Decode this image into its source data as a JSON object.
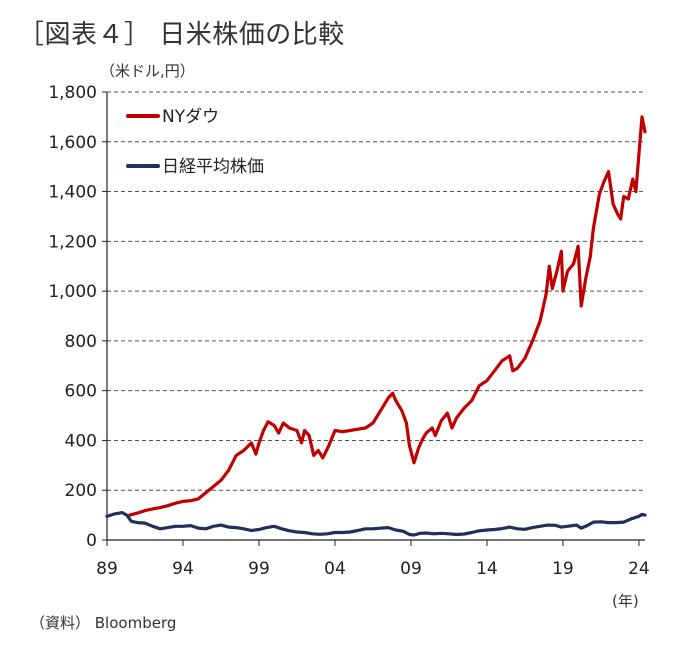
{
  "title": "［図表４］ 日米株価の比較",
  "y_unit": "（米ドル,円）",
  "x_unit": "(年)",
  "source": "（資料） Bloomberg",
  "chart_data": {
    "type": "line",
    "ylim": [
      0,
      1800
    ],
    "yticks": [
      0,
      200,
      400,
      600,
      800,
      1000,
      1200,
      1400,
      1600,
      1800
    ],
    "ytick_labels": [
      "0",
      "200",
      "400",
      "600",
      "800",
      "1,000",
      "1,200",
      "1,400",
      "1,600",
      "1,800"
    ],
    "xlim": [
      1989,
      2024.4
    ],
    "xticks": [
      1989,
      1994,
      1999,
      2004,
      2009,
      2014,
      2019,
      2024
    ],
    "xtick_labels": [
      "89",
      "94",
      "99",
      "04",
      "09",
      "14",
      "19",
      "24"
    ],
    "grid": "horizontal dashed",
    "legend_position": "top-left",
    "series": [
      {
        "name": "NYダウ",
        "color": "#c00000",
        "points": [
          [
            1990.5,
            100
          ],
          [
            1991.0,
            108
          ],
          [
            1991.5,
            118
          ],
          [
            1992.0,
            125
          ],
          [
            1992.5,
            130
          ],
          [
            1993.0,
            138
          ],
          [
            1993.5,
            148
          ],
          [
            1994.0,
            155
          ],
          [
            1994.5,
            158
          ],
          [
            1995.0,
            165
          ],
          [
            1995.5,
            190
          ],
          [
            1996.0,
            215
          ],
          [
            1996.5,
            240
          ],
          [
            1997.0,
            280
          ],
          [
            1997.5,
            340
          ],
          [
            1998.0,
            360
          ],
          [
            1998.5,
            390
          ],
          [
            1998.8,
            345
          ],
          [
            1999.0,
            390
          ],
          [
            1999.3,
            440
          ],
          [
            1999.6,
            475
          ],
          [
            2000.0,
            460
          ],
          [
            2000.3,
            430
          ],
          [
            2000.6,
            470
          ],
          [
            2001.0,
            450
          ],
          [
            2001.5,
            440
          ],
          [
            2001.8,
            390
          ],
          [
            2002.0,
            440
          ],
          [
            2002.3,
            420
          ],
          [
            2002.6,
            340
          ],
          [
            2002.9,
            360
          ],
          [
            2003.2,
            330
          ],
          [
            2003.6,
            380
          ],
          [
            2004.0,
            440
          ],
          [
            2004.5,
            435
          ],
          [
            2005.0,
            440
          ],
          [
            2005.5,
            445
          ],
          [
            2006.0,
            450
          ],
          [
            2006.5,
            470
          ],
          [
            2007.0,
            520
          ],
          [
            2007.5,
            570
          ],
          [
            2007.8,
            590
          ],
          [
            2008.0,
            560
          ],
          [
            2008.4,
            520
          ],
          [
            2008.7,
            470
          ],
          [
            2008.9,
            380
          ],
          [
            2009.2,
            310
          ],
          [
            2009.5,
            370
          ],
          [
            2009.8,
            410
          ],
          [
            2010.0,
            430
          ],
          [
            2010.4,
            450
          ],
          [
            2010.6,
            420
          ],
          [
            2011.0,
            480
          ],
          [
            2011.4,
            510
          ],
          [
            2011.7,
            450
          ],
          [
            2012.0,
            490
          ],
          [
            2012.5,
            530
          ],
          [
            2013.0,
            560
          ],
          [
            2013.5,
            620
          ],
          [
            2014.0,
            640
          ],
          [
            2014.5,
            680
          ],
          [
            2015.0,
            720
          ],
          [
            2015.5,
            740
          ],
          [
            2015.7,
            680
          ],
          [
            2016.0,
            690
          ],
          [
            2016.5,
            730
          ],
          [
            2017.0,
            800
          ],
          [
            2017.5,
            880
          ],
          [
            2017.9,
            990
          ],
          [
            2018.1,
            1100
          ],
          [
            2018.3,
            1010
          ],
          [
            2018.6,
            1080
          ],
          [
            2018.9,
            1160
          ],
          [
            2019.0,
            1000
          ],
          [
            2019.3,
            1080
          ],
          [
            2019.7,
            1110
          ],
          [
            2020.0,
            1180
          ],
          [
            2020.2,
            940
          ],
          [
            2020.5,
            1050
          ],
          [
            2020.8,
            1140
          ],
          [
            2021.0,
            1250
          ],
          [
            2021.4,
            1390
          ],
          [
            2021.7,
            1440
          ],
          [
            2022.0,
            1480
          ],
          [
            2022.3,
            1350
          ],
          [
            2022.6,
            1310
          ],
          [
            2022.8,
            1290
          ],
          [
            2023.0,
            1380
          ],
          [
            2023.3,
            1370
          ],
          [
            2023.6,
            1450
          ],
          [
            2023.8,
            1400
          ],
          [
            2024.0,
            1550
          ],
          [
            2024.2,
            1700
          ],
          [
            2024.4,
            1640
          ]
        ]
      },
      {
        "name": "日経平均株価",
        "color": "#1f2f5e",
        "points": [
          [
            1989.0,
            95
          ],
          [
            1989.5,
            105
          ],
          [
            1990.0,
            110
          ],
          [
            1990.3,
            100
          ],
          [
            1990.6,
            75
          ],
          [
            1991.0,
            70
          ],
          [
            1991.5,
            68
          ],
          [
            1992.0,
            55
          ],
          [
            1992.5,
            45
          ],
          [
            1993.0,
            50
          ],
          [
            1993.5,
            55
          ],
          [
            1994.0,
            55
          ],
          [
            1994.5,
            58
          ],
          [
            1995.0,
            48
          ],
          [
            1995.5,
            45
          ],
          [
            1996.0,
            55
          ],
          [
            1996.5,
            60
          ],
          [
            1997.0,
            52
          ],
          [
            1997.5,
            50
          ],
          [
            1998.0,
            45
          ],
          [
            1998.5,
            38
          ],
          [
            1999.0,
            42
          ],
          [
            1999.5,
            50
          ],
          [
            2000.0,
            55
          ],
          [
            2000.5,
            45
          ],
          [
            2001.0,
            37
          ],
          [
            2001.5,
            32
          ],
          [
            2002.0,
            30
          ],
          [
            2002.5,
            25
          ],
          [
            2003.0,
            23
          ],
          [
            2003.5,
            25
          ],
          [
            2004.0,
            30
          ],
          [
            2004.5,
            30
          ],
          [
            2005.0,
            32
          ],
          [
            2005.5,
            38
          ],
          [
            2006.0,
            45
          ],
          [
            2006.5,
            45
          ],
          [
            2007.0,
            48
          ],
          [
            2007.5,
            50
          ],
          [
            2008.0,
            40
          ],
          [
            2008.5,
            35
          ],
          [
            2008.9,
            22
          ],
          [
            2009.2,
            20
          ],
          [
            2009.6,
            27
          ],
          [
            2010.0,
            28
          ],
          [
            2010.5,
            25
          ],
          [
            2011.0,
            27
          ],
          [
            2011.5,
            25
          ],
          [
            2012.0,
            22
          ],
          [
            2012.5,
            24
          ],
          [
            2013.0,
            30
          ],
          [
            2013.5,
            37
          ],
          [
            2014.0,
            40
          ],
          [
            2014.5,
            42
          ],
          [
            2015.0,
            46
          ],
          [
            2015.5,
            52
          ],
          [
            2016.0,
            45
          ],
          [
            2016.5,
            43
          ],
          [
            2017.0,
            50
          ],
          [
            2017.5,
            55
          ],
          [
            2018.0,
            60
          ],
          [
            2018.5,
            59
          ],
          [
            2018.9,
            52
          ],
          [
            2019.3,
            55
          ],
          [
            2019.9,
            60
          ],
          [
            2020.2,
            48
          ],
          [
            2020.6,
            58
          ],
          [
            2021.0,
            72
          ],
          [
            2021.5,
            73
          ],
          [
            2022.0,
            70
          ],
          [
            2022.5,
            70
          ],
          [
            2023.0,
            72
          ],
          [
            2023.5,
            85
          ],
          [
            2024.0,
            95
          ],
          [
            2024.2,
            103
          ],
          [
            2024.4,
            100
          ]
        ]
      }
    ]
  }
}
